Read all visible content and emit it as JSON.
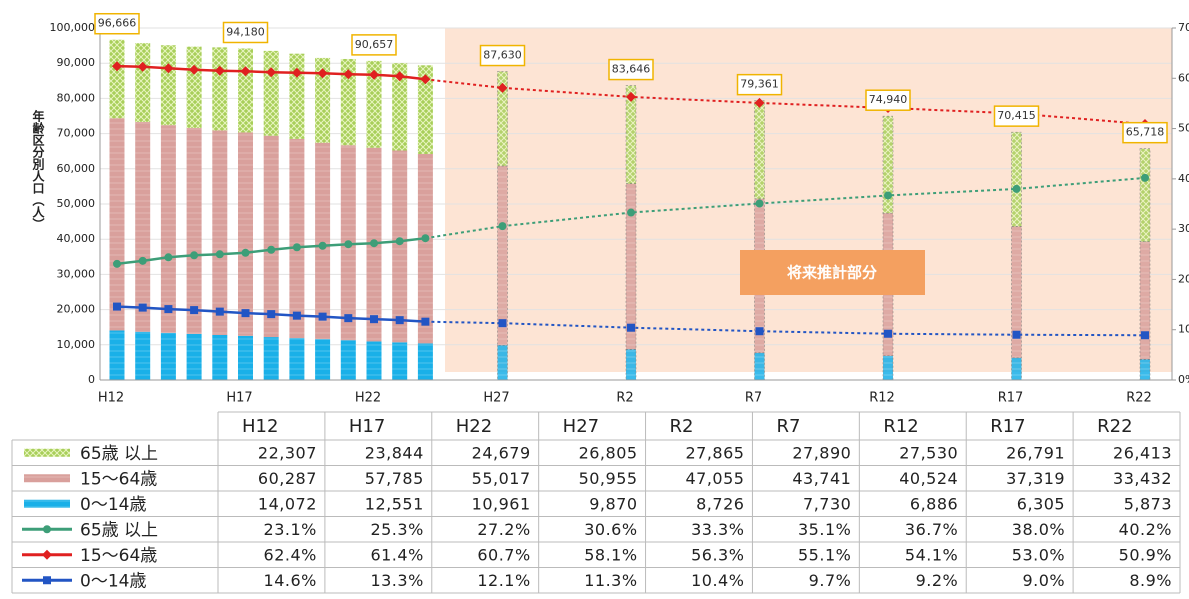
{
  "chart_data": {
    "type": "bar",
    "y_label": "年齢区分別人口（人）",
    "annotation": "将来推計部分",
    "categories": [
      "H12",
      null,
      null,
      null,
      null,
      "H17",
      null,
      null,
      null,
      null,
      "H22",
      null,
      null,
      "H27",
      "R2",
      "R7",
      "R12",
      "R17",
      "R22"
    ],
    "total_labels": [
      "96,666",
      null,
      null,
      null,
      null,
      "94,180",
      null,
      null,
      null,
      null,
      "90,657",
      null,
      null,
      "87,630",
      "83,646",
      "79,361",
      "74,940",
      "70,415",
      "65,718"
    ],
    "ylim": [
      0,
      100000
    ],
    "yticks": [
      0,
      {
        "value": 10000,
        "label": "10,000"
      },
      {
        "value": 20000,
        "label": "20,000"
      },
      {
        "value": 30000,
        "label": "30,000"
      },
      {
        "value": 40000,
        "label": "40,000"
      },
      {
        "value": 50000,
        "label": "50,000"
      },
      {
        "value": 60000,
        "label": "60,000"
      },
      {
        "value": 70000,
        "label": "70,000"
      },
      {
        "value": 80000,
        "label": "80,000"
      },
      {
        "value": 90000,
        "label": "90,000"
      },
      {
        "value": 100000,
        "label": "100,000"
      }
    ],
    "y2lim": [
      0,
      70
    ],
    "y2ticks": [
      {
        "value": 0,
        "label": "0%"
      },
      {
        "value": 10,
        "label": "10%"
      },
      {
        "value": 20,
        "label": "20%"
      },
      {
        "value": 30,
        "label": "30%"
      },
      {
        "value": 40,
        "label": "40%"
      },
      {
        "value": 50,
        "label": "50%"
      },
      {
        "value": 60,
        "label": "60%"
      },
      {
        "value": 70,
        "label": "70%"
      }
    ],
    "series": [
      {
        "name": "65歳 以上",
        "type": "bar",
        "color": "#a8cf5a",
        "values": [
          22307,
          22400,
          22700,
          23100,
          23600,
          23844,
          24100,
          24200,
          24100,
          24500,
          24679,
          24800,
          25200,
          26805,
          27865,
          27890,
          27530,
          26791,
          26413
        ],
        "value_labels": [
          "22,307",
          null,
          null,
          null,
          null,
          "23,844",
          null,
          null,
          null,
          null,
          "24,679",
          null,
          null,
          "26,805",
          "27,865",
          "27,890",
          "27,530",
          "26,791",
          "26,413"
        ]
      },
      {
        "name": "15～64歳",
        "type": "bar",
        "color": "#d9a09c",
        "values": [
          60287,
          59600,
          59000,
          58500,
          58100,
          57785,
          57200,
          56600,
          55800,
          55400,
          55017,
          54500,
          53800,
          50955,
          47055,
          43741,
          40524,
          37319,
          33432
        ],
        "value_labels": [
          "60,287",
          null,
          null,
          null,
          null,
          "57,785",
          null,
          null,
          null,
          null,
          "55,017",
          null,
          null,
          "50,955",
          "47,055",
          "43,741",
          "40,524",
          "37,319",
          "33,432"
        ]
      },
      {
        "name": "0～14歳",
        "type": "bar",
        "color": "#1ab0e8",
        "values": [
          14072,
          13700,
          13400,
          13100,
          12800,
          12551,
          12200,
          11900,
          11600,
          11300,
          10961,
          10700,
          10400,
          9870,
          8726,
          7730,
          6886,
          6305,
          5873
        ],
        "value_labels": [
          "14,072",
          null,
          null,
          null,
          null,
          "12,551",
          null,
          null,
          null,
          null,
          "10,961",
          null,
          null,
          "9,870",
          "8,726",
          "7,730",
          "6,886",
          "6,305",
          "5,873"
        ]
      },
      {
        "name": "65歳 以上",
        "type": "line",
        "axis": "y2",
        "marker": "circle",
        "color": "#3d9e78",
        "values": [
          23.1,
          23.7,
          24.4,
          24.8,
          25.0,
          25.3,
          25.9,
          26.4,
          26.7,
          27.0,
          27.2,
          27.6,
          28.2,
          30.6,
          33.3,
          35.1,
          36.7,
          38.0,
          40.2
        ],
        "value_labels": [
          "23.1%",
          null,
          null,
          null,
          null,
          "25.3%",
          null,
          null,
          null,
          null,
          "27.2%",
          null,
          null,
          "30.6%",
          "33.3%",
          "35.1%",
          "36.7%",
          "38.0%",
          "40.2%"
        ]
      },
      {
        "name": "15～64歳",
        "type": "line",
        "axis": "y2",
        "marker": "diamond",
        "color": "#e02020",
        "values": [
          62.4,
          62.3,
          62.0,
          61.7,
          61.5,
          61.4,
          61.2,
          61.1,
          61.0,
          60.8,
          60.7,
          60.4,
          59.8,
          58.1,
          56.3,
          55.1,
          54.1,
          53.0,
          50.9
        ],
        "value_labels": [
          "62.4%",
          null,
          null,
          null,
          null,
          "61.4%",
          null,
          null,
          null,
          null,
          "60.7%",
          null,
          null,
          "58.1%",
          "56.3%",
          "55.1%",
          "54.1%",
          "53.0%",
          "50.9%"
        ]
      },
      {
        "name": "0～14歳",
        "type": "line",
        "axis": "y2",
        "marker": "square",
        "color": "#2255c4",
        "values": [
          14.6,
          14.4,
          14.1,
          13.9,
          13.6,
          13.3,
          13.1,
          12.8,
          12.6,
          12.3,
          12.1,
          11.9,
          11.6,
          11.3,
          10.4,
          9.7,
          9.2,
          9.0,
          8.9
        ],
        "value_labels": [
          "14.6%",
          null,
          null,
          null,
          null,
          "13.3%",
          null,
          null,
          null,
          null,
          "12.1%",
          null,
          null,
          "11.3%",
          "10.4%",
          "9.7%",
          "9.2%",
          "9.0%",
          "8.9%"
        ]
      }
    ]
  }
}
